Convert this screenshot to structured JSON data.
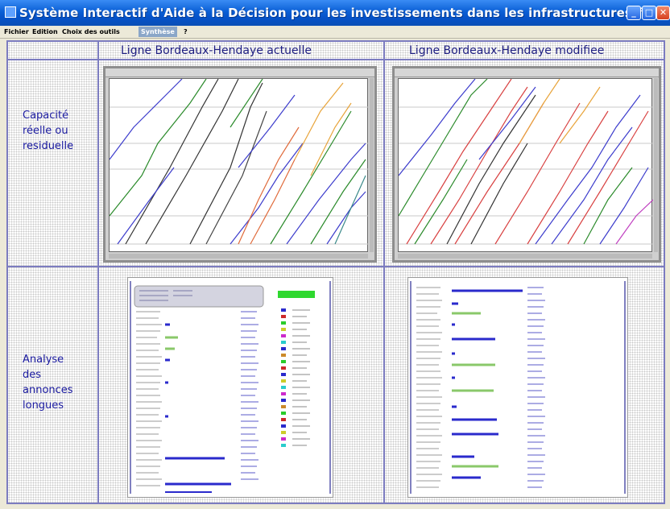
{
  "window": {
    "title": "Système Interactif d'Aide à la Décision pour les investissements dans les infrastructures ferroviaires"
  },
  "menu": {
    "items": [
      "Fichier",
      "Edition",
      "Choix des outils",
      "Synthèse",
      "?"
    ]
  },
  "grid": {
    "column_headers": [
      "Ligne Bordeaux-Hendaye actuelle",
      "Ligne Bordeaux-Hendaye modifiee"
    ],
    "row_labels": [
      [
        "Capacité",
        "réelle ou",
        "residuelle"
      ],
      [
        "Analyse",
        "des",
        "annonces",
        "longues"
      ]
    ]
  },
  "colors": {
    "accent": "#1a1aa0",
    "grid_line": "#7c7cc0",
    "title_bar": "#0a5fd6"
  }
}
